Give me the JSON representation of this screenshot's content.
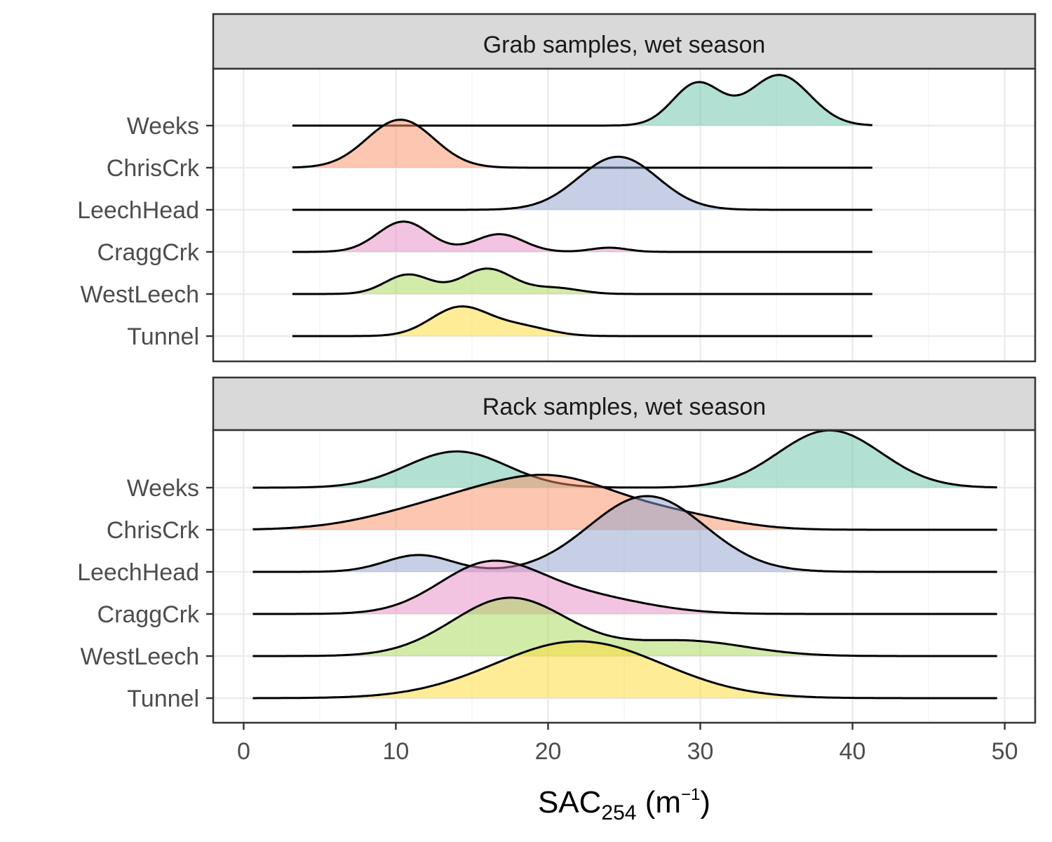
{
  "chart_data": {
    "type": "ridgeline",
    "categories": [
      "Tunnel",
      "WestLeech",
      "CraggCrk",
      "LeechHead",
      "ChrisCrk",
      "Weeks"
    ],
    "xaxis": {
      "title_base": "SAC",
      "title_sub": "254",
      "title_unit_open": " (m",
      "title_sup": "−1",
      "title_unit_close": ")",
      "xlim": [
        -2,
        52
      ],
      "ticks": [
        0,
        10,
        20,
        30,
        40,
        50
      ],
      "tick_labels": [
        "0",
        "10",
        "20",
        "30",
        "40",
        "50"
      ]
    },
    "grid": true,
    "colors": {
      "Weeks": "#66c2a5",
      "ChrisCrk": "#fc8d62",
      "LeechHead": "#8da0cb",
      "CraggCrk": "#e78ac3",
      "WestLeech": "#a6d854",
      "Tunnel": "#ffd92f"
    },
    "panels": [
      {
        "title": "Grab samples, wet season",
        "x_range": [
          3.2,
          41.3
        ],
        "series": [
          {
            "name": "Tunnel",
            "peaks": [
              [
                14.2,
                1.9,
                0.68
              ],
              [
                18.2,
                1.9,
                0.22
              ]
            ]
          },
          {
            "name": "WestLeech",
            "peaks": [
              [
                10.8,
                1.5,
                0.46
              ],
              [
                16.0,
                1.7,
                0.6
              ],
              [
                20.5,
                1.6,
                0.14
              ]
            ]
          },
          {
            "name": "CraggCrk",
            "peaks": [
              [
                10.5,
                1.7,
                0.72
              ],
              [
                16.8,
                1.6,
                0.42
              ],
              [
                24.0,
                1.2,
                0.1
              ]
            ]
          },
          {
            "name": "LeechHead",
            "peaks": [
              [
                24.6,
                2.6,
                1.26
              ]
            ]
          },
          {
            "name": "ChrisCrk",
            "peaks": [
              [
                10.3,
                2.2,
                1.14
              ]
            ]
          },
          {
            "name": "Weeks",
            "peaks": [
              [
                29.8,
                1.6,
                1.0
              ],
              [
                35.2,
                2.0,
                1.2
              ]
            ]
          }
        ]
      },
      {
        "title": "Rack samples, wet season",
        "x_range": [
          0.6,
          49.5
        ],
        "series": [
          {
            "name": "Tunnel",
            "peaks": [
              [
                22.0,
                5.5,
                1.35
              ]
            ]
          },
          {
            "name": "WestLeech",
            "peaks": [
              [
                17.5,
                3.8,
                1.38
              ],
              [
                29.0,
                4.0,
                0.36
              ]
            ]
          },
          {
            "name": "CraggCrk",
            "peaks": [
              [
                16.0,
                3.3,
                1.1
              ],
              [
                22.0,
                4.2,
                0.42
              ]
            ]
          },
          {
            "name": "LeechHead",
            "peaks": [
              [
                11.5,
                2.2,
                0.4
              ],
              [
                26.5,
                3.8,
                1.8
              ]
            ]
          },
          {
            "name": "ChrisCrk",
            "peaks": [
              [
                13.0,
                4.5,
                0.5
              ],
              [
                20.5,
                4.5,
                1.15
              ],
              [
                29.0,
                3.5,
                0.25
              ]
            ]
          },
          {
            "name": "Weeks",
            "peaks": [
              [
                14.0,
                3.3,
                0.86
              ],
              [
                38.5,
                3.4,
                1.36
              ]
            ]
          }
        ]
      }
    ]
  }
}
